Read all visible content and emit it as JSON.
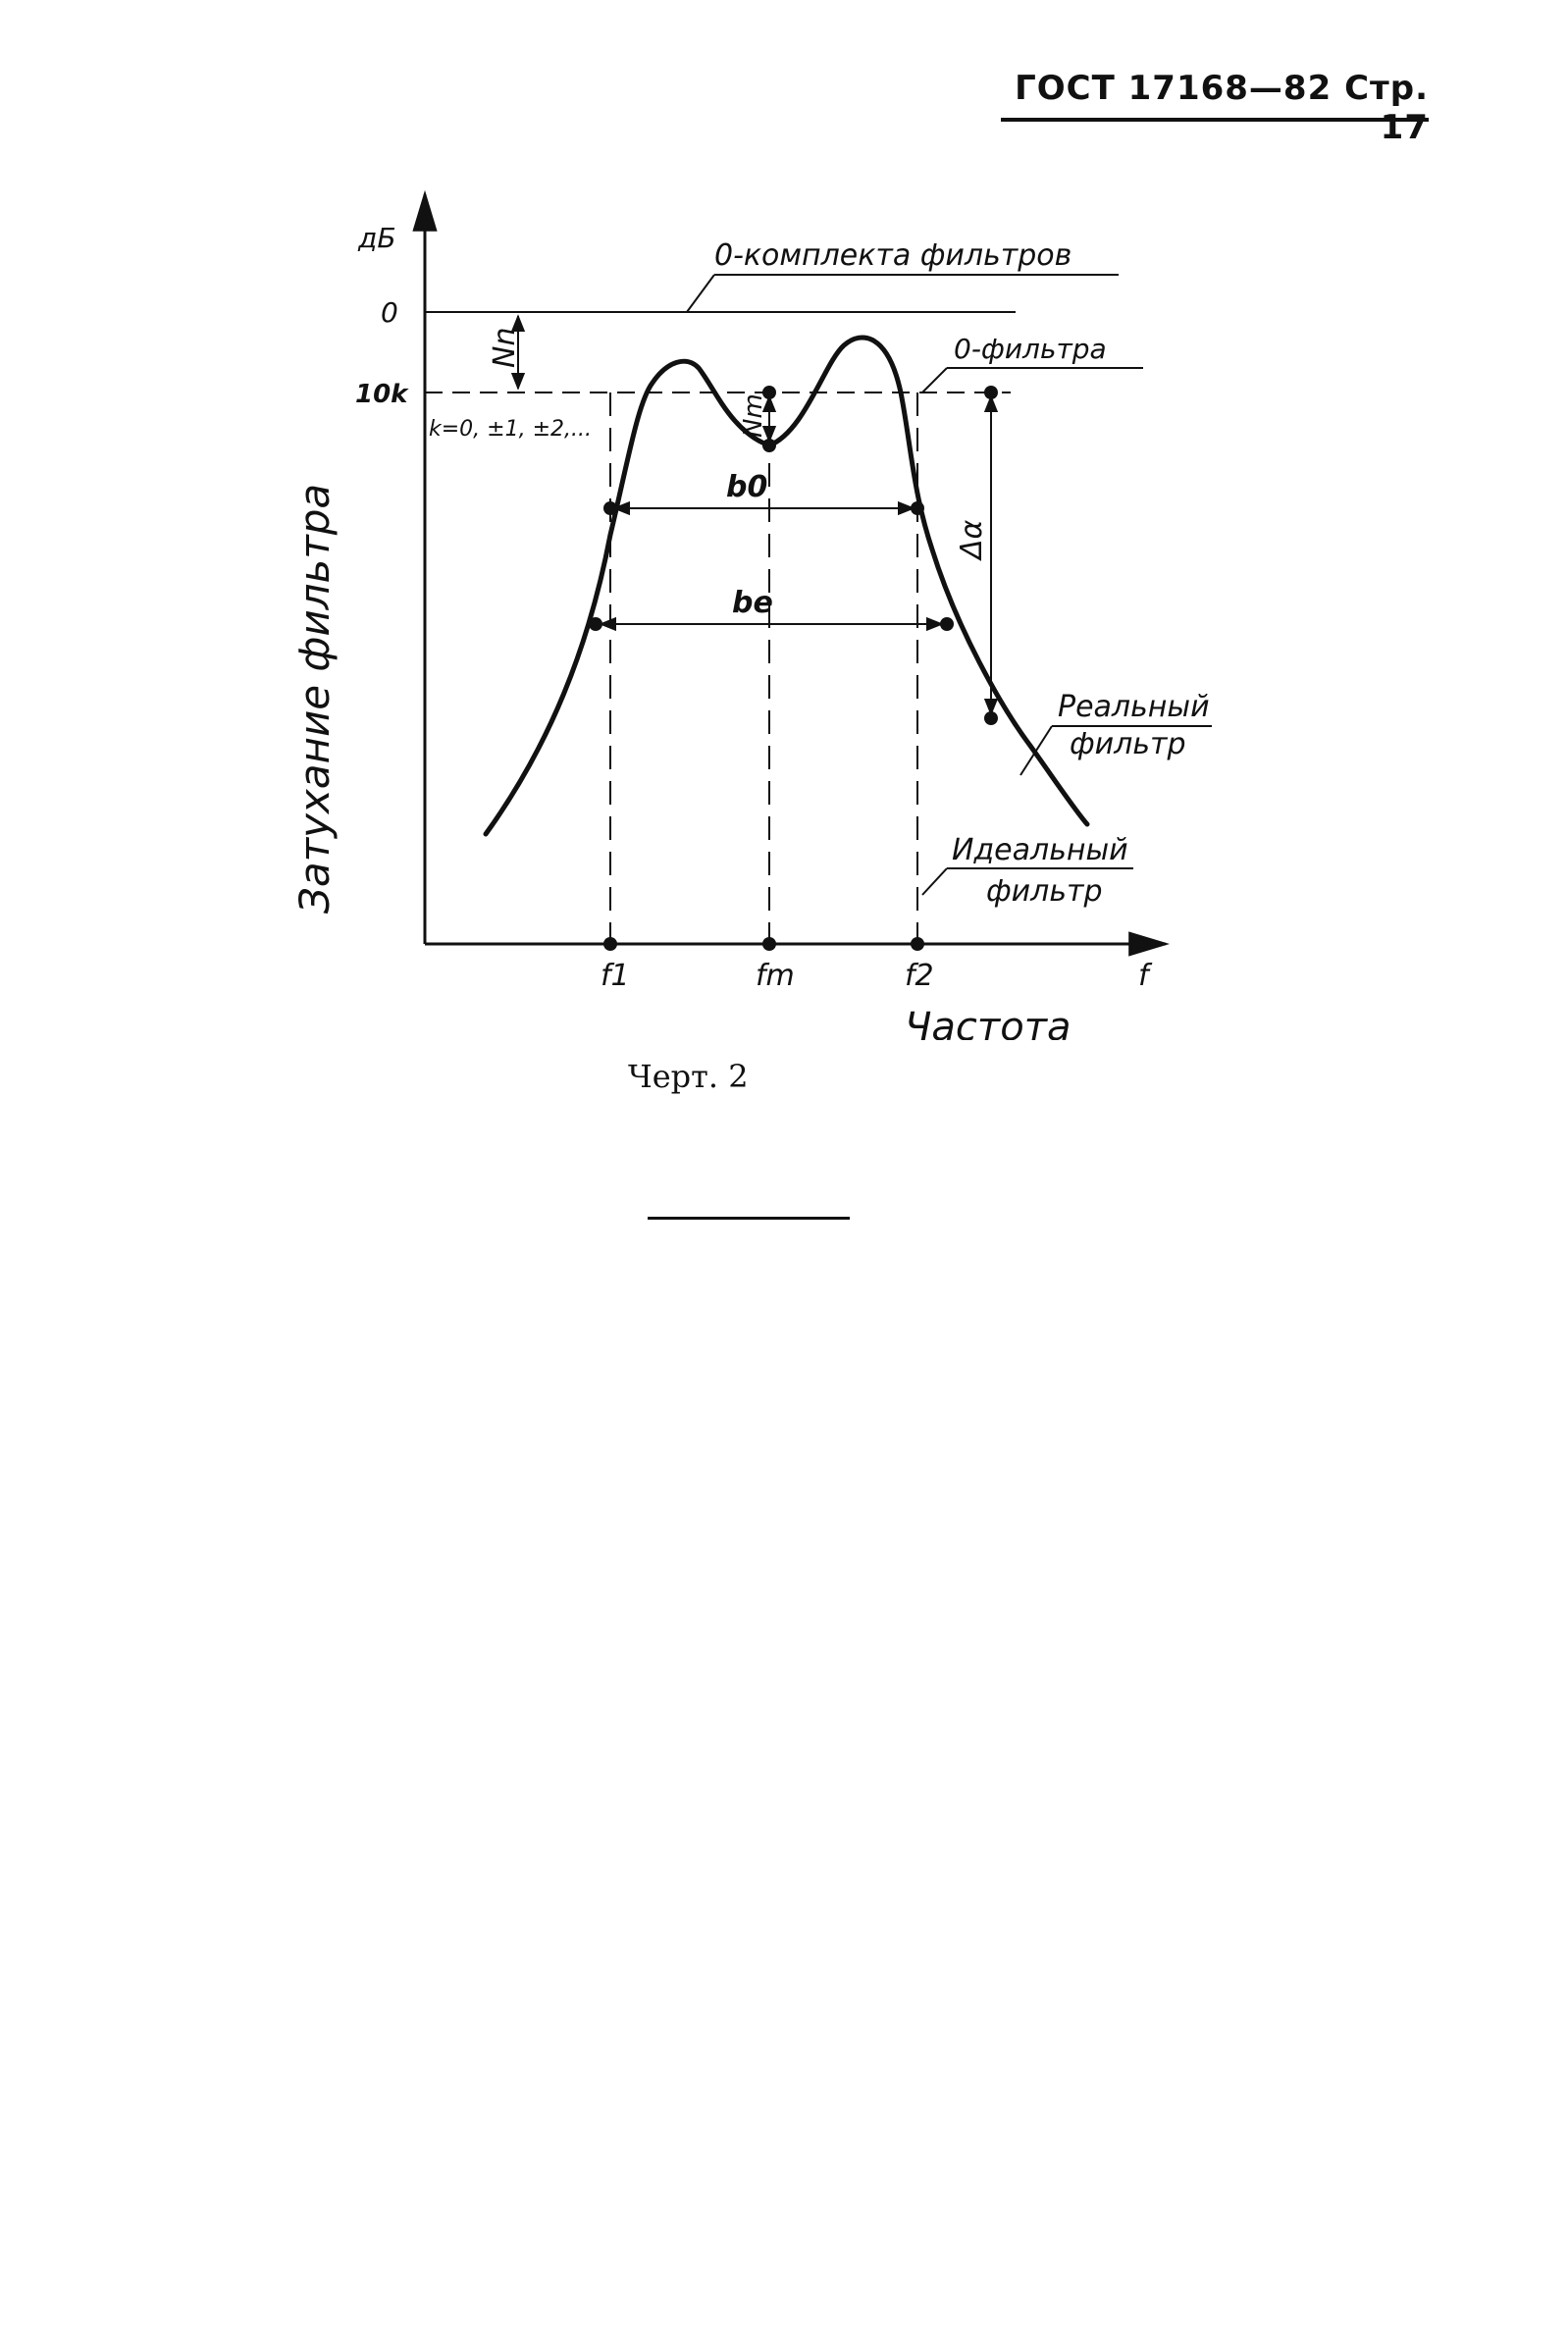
{
  "header": {
    "text": "ГОСТ 17168—82 Стр. 17"
  },
  "figure": {
    "y_unit": "дБ",
    "level_zero": "0",
    "level_10k": "10k",
    "k_values": "k=0, ±1, ±2,...",
    "label_set_zero": "0-комплекта фильтров",
    "label_filter_zero": "0-фильтра",
    "label_Nn": "Nn",
    "label_Nm": "Nm",
    "label_b0": "b0",
    "label_be": "be",
    "label_delta_alpha": "Δα",
    "label_real_filter_line1": "Реальный",
    "label_real_filter_line2": "фильтр",
    "label_ideal_filter_line1": "Идеальный",
    "label_ideal_filter_line2": "фильтр",
    "tick_f1": "f1",
    "tick_fm": "fm",
    "tick_f2": "f2",
    "x_var": "f",
    "x_label": "Частота",
    "y_label": "Затухание фильтра"
  },
  "caption": {
    "text": "Черт. 2"
  }
}
